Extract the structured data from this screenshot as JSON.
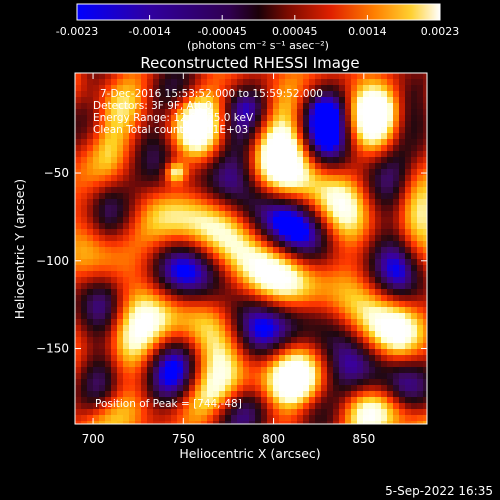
{
  "chart_data": {
    "type": "heatmap",
    "title": "Reconstructed RHESSI Image",
    "xlabel": "Heliocentric X (arcsec)",
    "ylabel": "Heliocentric Y (arcsec)",
    "xlim": [
      690,
      885
    ],
    "ylim": [
      -193,
      7
    ],
    "xticks": [
      700,
      750,
      800,
      850
    ],
    "yticks": [
      -50,
      -100,
      -150
    ],
    "colorbar": {
      "ticks": [
        "-0.0023",
        "-0.0014",
        "-0.00045",
        "0.00045",
        "0.0014",
        "0.0023"
      ],
      "range": [
        -0.0023,
        0.0023
      ],
      "units": "(photons cm⁻² s⁻¹ asec⁻²)"
    },
    "annotations": [
      "7-Dec-2016 15:53:52.000 to 15:59:52.000",
      "Detectors: 3F 9F, Att 0",
      "Energy Range: 12.0 - 25.0 keV",
      "Clean     Total counts: 7.11E+03"
    ],
    "peak_label": "Position of Peak = [744,-48]",
    "peak": {
      "x": 744,
      "y": -48
    },
    "footer_date": "5-Sep-2022 16:35",
    "colormap": [
      "#0000ff",
      "#3a00a0",
      "#3c0a5a",
      "#200810",
      "#6a0a0a",
      "#c01a00",
      "#ff3a00",
      "#ff8a00",
      "#ffd020",
      "#ffffd0",
      "#ffffff"
    ]
  }
}
